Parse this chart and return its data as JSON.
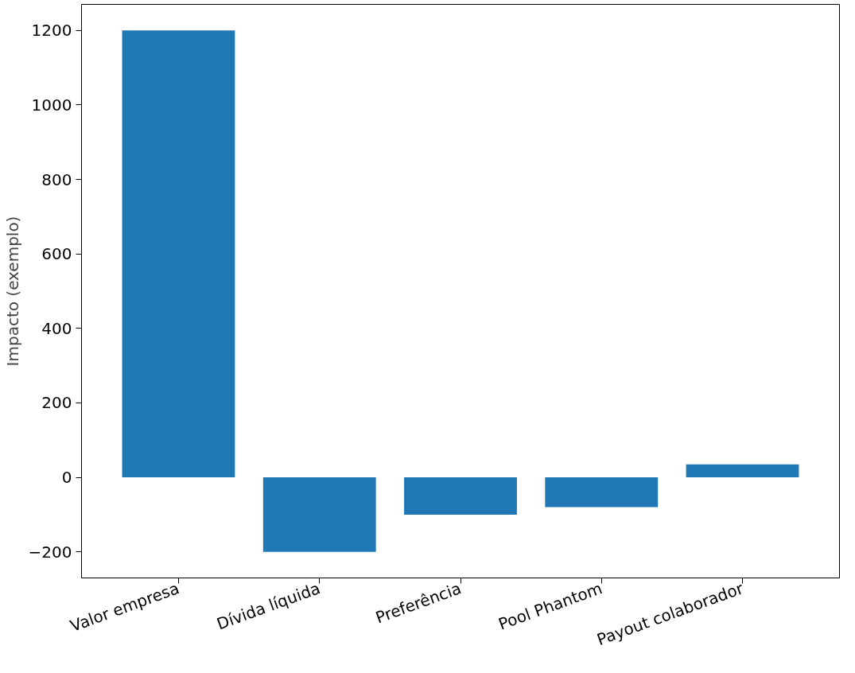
{
  "chart_data": {
    "type": "bar",
    "ylabel": "Impacto (exemplo)",
    "categories": [
      "Valor empresa",
      "Dívida líquida",
      "Preferência",
      "Pool Phantom",
      "Payout colaborador"
    ],
    "values": [
      1200,
      -200,
      -100,
      -80,
      35
    ],
    "color": "#1f77b4",
    "ylim": [
      -270,
      1270
    ],
    "yticks": [
      {
        "value": -200,
        "label": "−200"
      },
      0,
      200,
      400,
      600,
      800,
      1000,
      1200
    ],
    "grid": false
  }
}
